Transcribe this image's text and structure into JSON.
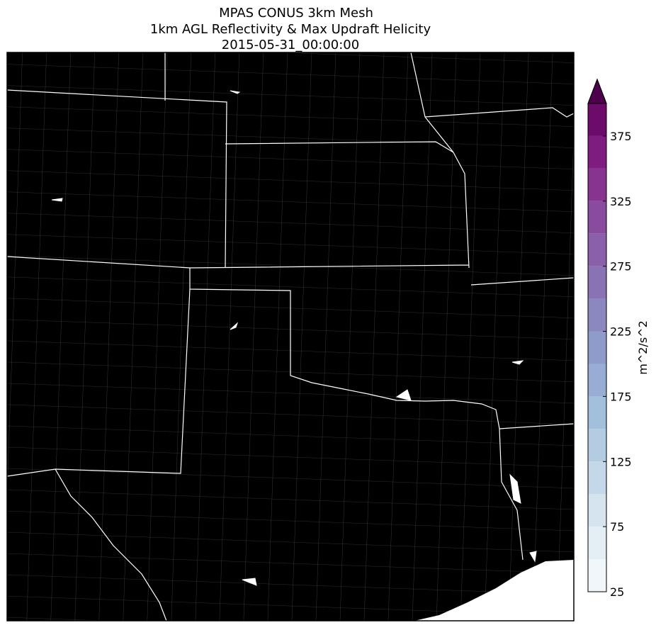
{
  "title_lines": [
    "MPAS CONUS 3km Mesh",
    "1km AGL Reflectivity & Max Updraft Helicity",
    "2015-05-31_00:00:00"
  ],
  "colorbar": {
    "label": "m^2/s^2",
    "extend": "max",
    "levels": [
      25,
      50,
      75,
      100,
      125,
      150,
      175,
      200,
      225,
      250,
      275,
      300,
      325,
      350,
      375,
      400
    ],
    "colors": [
      "#f1f6fa",
      "#e4eef5",
      "#d5e4ef",
      "#c5d8e9",
      "#b3cce2",
      "#a2bfdb",
      "#97add3",
      "#8f9bca",
      "#8b87bf",
      "#8a73b4",
      "#8960a9",
      "#894b9e",
      "#86348f",
      "#7f1c7f",
      "#6d0b6b",
      "#4d004b"
    ],
    "ticks": [
      25,
      75,
      125,
      175,
      225,
      275,
      325,
      375
    ]
  }
}
